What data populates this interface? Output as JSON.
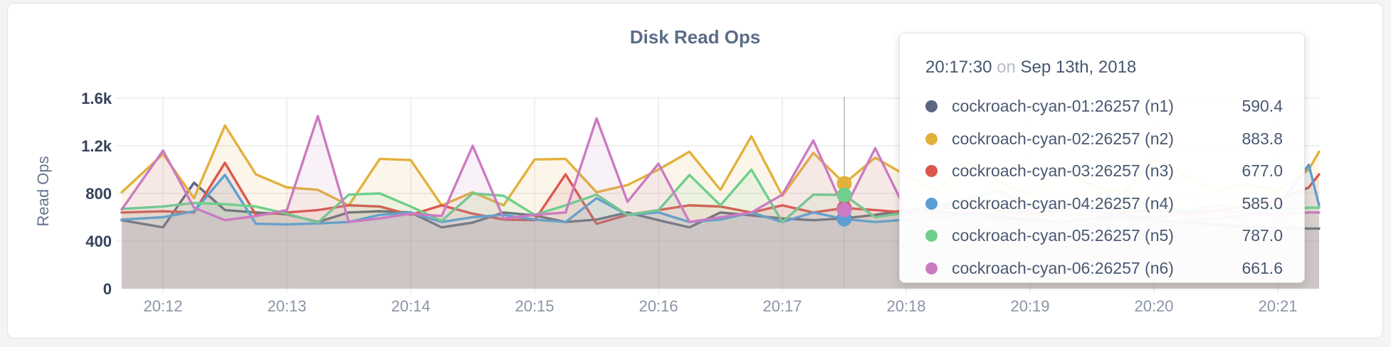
{
  "chart_data": {
    "type": "line",
    "title": "Disk Read Ops",
    "ylabel": "Read Ops",
    "ylim": [
      0,
      1600
    ],
    "grid": true,
    "y_tick_values": [
      0,
      400,
      800,
      1200,
      1600
    ],
    "y_tick_labels": [
      "0",
      "400",
      "800",
      "1.2k",
      "1.6k"
    ],
    "x_tick_labels": [
      "20:12",
      "20:13",
      "20:14",
      "20:15",
      "20:16",
      "20:17",
      "20:18",
      "20:19",
      "20:20",
      "20:21"
    ],
    "x_seconds": [
      -20,
      0,
      15,
      30,
      45,
      60,
      75,
      90,
      105,
      120,
      135,
      150,
      165,
      180,
      195,
      210,
      225,
      240,
      255,
      270,
      285,
      300,
      315,
      330,
      345,
      360,
      375,
      390,
      405,
      420,
      435,
      450,
      465,
      480,
      495,
      510,
      525,
      540,
      555,
      560
    ],
    "hover_index": 23,
    "series": [
      {
        "name": "cockroach-cyan-01:26257 (n1)",
        "color": "#5b6780",
        "values": [
          575,
          515,
          890,
          660,
          640,
          625,
          560,
          640,
          650,
          640,
          515,
          555,
          640,
          615,
          560,
          580,
          640,
          575,
          515,
          640,
          615,
          590,
          575,
          590.4,
          620,
          660,
          650,
          620,
          600,
          580,
          560,
          590,
          610,
          575,
          555,
          540,
          520,
          510,
          505,
          505
        ]
      },
      {
        "name": "cockroach-cyan-02:26257 (n2)",
        "color": "#e2b13c",
        "values": [
          810,
          1130,
          760,
          1370,
          960,
          850,
          830,
          700,
          1090,
          1080,
          700,
          810,
          700,
          1085,
          1090,
          810,
          870,
          1000,
          1150,
          830,
          1280,
          780,
          1140,
          883.8,
          1100,
          950,
          820,
          1060,
          900,
          780,
          1010,
          870,
          800,
          1090,
          950,
          820,
          880,
          820,
          1000,
          1150
        ]
      },
      {
        "name": "cockroach-cyan-03:26257 (n3)",
        "color": "#dc574e",
        "values": [
          640,
          650,
          640,
          1057,
          620,
          640,
          660,
          700,
          690,
          620,
          700,
          630,
          580,
          575,
          960,
          545,
          620,
          660,
          700,
          690,
          640,
          700,
          640,
          677,
          660,
          640,
          690,
          720,
          650,
          630,
          660,
          700,
          640,
          660,
          630,
          650,
          700,
          740,
          850,
          960
        ]
      },
      {
        "name": "cockroach-cyan-04:26257 (n4)",
        "color": "#5b9fd4",
        "values": [
          580,
          600,
          650,
          955,
          545,
          540,
          548,
          560,
          620,
          640,
          560,
          600,
          620,
          580,
          560,
          760,
          620,
          640,
          560,
          580,
          640,
          560,
          640,
          585,
          560,
          580,
          600,
          620,
          590,
          570,
          560,
          590,
          620,
          580,
          560,
          590,
          620,
          680,
          1040,
          700
        ]
      },
      {
        "name": "cockroach-cyan-05:26257 (n5)",
        "color": "#6fcf8c",
        "values": [
          670,
          690,
          720,
          710,
          690,
          630,
          555,
          790,
          800,
          690,
          570,
          800,
          780,
          620,
          700,
          790,
          620,
          660,
          955,
          700,
          1000,
          560,
          790,
          787,
          600,
          640,
          700,
          760,
          820,
          700,
          650,
          700,
          760,
          700,
          650,
          700,
          680,
          660,
          680,
          680
        ]
      },
      {
        "name": "cockroach-cyan-06:26257 (n6)",
        "color": "#cb7bc3",
        "values": [
          665,
          1160,
          680,
          575,
          610,
          660,
          1450,
          560,
          590,
          630,
          610,
          1200,
          590,
          620,
          640,
          1430,
          730,
          1050,
          560,
          600,
          640,
          790,
          1245,
          661.6,
          1180,
          650,
          700,
          640,
          620,
          660,
          700,
          650,
          620,
          600,
          640,
          660,
          640,
          620,
          640,
          640
        ]
      }
    ]
  },
  "tooltip": {
    "time": "20:17:30",
    "on_word": "on",
    "date": "Sep 13th, 2018",
    "rows": [
      {
        "label": "cockroach-cyan-01:26257 (n1)",
        "value": "590.4",
        "color": "#5b6780"
      },
      {
        "label": "cockroach-cyan-02:26257 (n2)",
        "value": "883.8",
        "color": "#e2b13c"
      },
      {
        "label": "cockroach-cyan-03:26257 (n3)",
        "value": "677.0",
        "color": "#dc574e"
      },
      {
        "label": "cockroach-cyan-04:26257 (n4)",
        "value": "585.0",
        "color": "#5b9fd4"
      },
      {
        "label": "cockroach-cyan-05:26257 (n5)",
        "value": "787.0",
        "color": "#6fcf8c"
      },
      {
        "label": "cockroach-cyan-06:26257 (n6)",
        "value": "661.6",
        "color": "#cb7bc3"
      }
    ]
  },
  "colors": {
    "grid": "#ebebeb",
    "hover_line": "#b9b9b9",
    "title": "#5b6c86",
    "y_tick": "#35435a",
    "x_tick": "#8a94a6"
  }
}
